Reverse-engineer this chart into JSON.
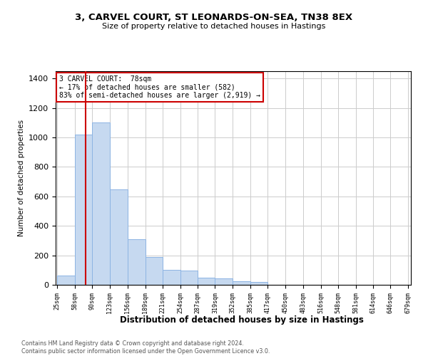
{
  "title_line1": "3, CARVEL COURT, ST LEONARDS-ON-SEA, TN38 8EX",
  "title_line2": "Size of property relative to detached houses in Hastings",
  "xlabel": "Distribution of detached houses by size in Hastings",
  "ylabel": "Number of detached properties",
  "footnote1": "Contains HM Land Registry data © Crown copyright and database right 2024.",
  "footnote2": "Contains public sector information licensed under the Open Government Licence v3.0.",
  "annotation_line1": "3 CARVEL COURT:  78sqm",
  "annotation_line2": "← 17% of detached houses are smaller (582)",
  "annotation_line3": "83% of semi-detached houses are larger (2,919) →",
  "property_size": 78,
  "bar_color": "#c6d9f0",
  "bar_edge_color": "#8db4e3",
  "vline_color": "#cc0000",
  "annotation_box_color": "#ffffff",
  "annotation_box_edge": "#cc0000",
  "background_color": "#ffffff",
  "grid_color": "#cccccc",
  "bins": [
    25,
    58,
    90,
    123,
    156,
    189,
    221,
    254,
    287,
    319,
    352,
    385,
    417,
    450,
    483,
    516,
    548,
    581,
    614,
    646,
    679
  ],
  "counts": [
    65,
    1020,
    1100,
    650,
    310,
    190,
    100,
    95,
    50,
    45,
    25,
    20,
    0,
    0,
    0,
    0,
    0,
    0,
    0,
    0
  ],
  "ylim": [
    0,
    1450
  ],
  "yticks": [
    0,
    200,
    400,
    600,
    800,
    1000,
    1200,
    1400
  ]
}
